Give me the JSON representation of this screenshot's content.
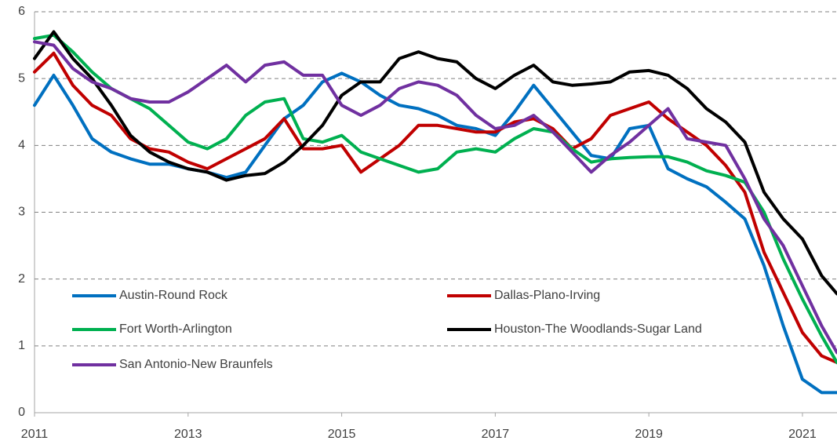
{
  "chart_data": {
    "type": "line",
    "x": [
      2011,
      2011.25,
      2011.5,
      2011.75,
      2012,
      2012.25,
      2012.5,
      2012.75,
      2013,
      2013.25,
      2013.5,
      2013.75,
      2014,
      2014.25,
      2014.5,
      2014.75,
      2015,
      2015.25,
      2015.5,
      2015.75,
      2016,
      2016.25,
      2016.5,
      2016.75,
      2017,
      2017.25,
      2017.5,
      2017.75,
      2018,
      2018.25,
      2018.5,
      2018.75,
      2019,
      2019.25,
      2019.5,
      2019.75,
      2020,
      2020.25,
      2020.5,
      2020.75,
      2021,
      2021.25,
      2021.45
    ],
    "series": [
      {
        "name": "Austin-Round Rock",
        "color": "#0070c0",
        "values": [
          4.6,
          5.05,
          4.6,
          4.1,
          3.9,
          3.8,
          3.72,
          3.72,
          3.65,
          3.6,
          3.52,
          3.6,
          4.0,
          4.4,
          4.6,
          4.95,
          5.08,
          4.95,
          4.75,
          4.6,
          4.55,
          4.45,
          4.3,
          4.25,
          4.15,
          4.5,
          4.9,
          4.55,
          4.2,
          3.85,
          3.8,
          4.25,
          4.3,
          3.65,
          3.5,
          3.38,
          3.15,
          2.9,
          2.2,
          1.3,
          0.5,
          0.3,
          0.3
        ]
      },
      {
        "name": "Dallas-Plano-Irving",
        "color": "#c00000",
        "values": [
          5.1,
          5.38,
          4.9,
          4.6,
          4.45,
          4.1,
          3.95,
          3.9,
          3.75,
          3.65,
          3.8,
          3.95,
          4.1,
          4.4,
          3.95,
          3.95,
          4.0,
          3.6,
          3.8,
          4.0,
          4.3,
          4.3,
          4.25,
          4.2,
          4.2,
          4.35,
          4.4,
          4.25,
          3.95,
          4.1,
          4.45,
          4.55,
          4.65,
          4.4,
          4.2,
          4.0,
          3.7,
          3.3,
          2.4,
          1.8,
          1.2,
          0.85,
          0.75
        ]
      },
      {
        "name": "Fort Worth-Arlington",
        "color": "#00b050",
        "values": [
          5.6,
          5.65,
          5.4,
          5.1,
          4.85,
          4.7,
          4.55,
          4.3,
          4.05,
          3.95,
          4.1,
          4.45,
          4.65,
          4.7,
          4.1,
          4.05,
          4.15,
          3.9,
          3.8,
          3.7,
          3.6,
          3.65,
          3.9,
          3.95,
          3.9,
          4.1,
          4.25,
          4.2,
          3.95,
          3.75,
          3.8,
          3.82,
          3.83,
          3.83,
          3.75,
          3.62,
          3.55,
          3.45,
          3.0,
          2.3,
          1.7,
          1.15,
          0.75
        ]
      },
      {
        "name": "Houston-The Woodlands-Sugar Land",
        "color": "#000000",
        "values": [
          5.3,
          5.7,
          5.3,
          5.0,
          4.6,
          4.15,
          3.9,
          3.75,
          3.65,
          3.6,
          3.48,
          3.55,
          3.58,
          3.75,
          4.0,
          4.3,
          4.75,
          4.95,
          4.95,
          5.3,
          5.4,
          5.3,
          5.25,
          5.0,
          4.85,
          5.05,
          5.2,
          4.95,
          4.9,
          4.92,
          4.95,
          5.1,
          5.12,
          5.05,
          4.85,
          4.55,
          4.35,
          4.05,
          3.3,
          2.9,
          2.6,
          2.05,
          1.78
        ]
      },
      {
        "name": "San Antonio-New Braunfels",
        "color": "#7030a0",
        "values": [
          5.55,
          5.5,
          5.15,
          4.95,
          4.85,
          4.7,
          4.65,
          4.65,
          4.8,
          5.0,
          5.2,
          4.95,
          5.2,
          5.25,
          5.05,
          5.05,
          4.6,
          4.45,
          4.6,
          4.85,
          4.95,
          4.9,
          4.75,
          4.45,
          4.25,
          4.3,
          4.45,
          4.2,
          3.9,
          3.6,
          3.85,
          4.05,
          4.3,
          4.55,
          4.1,
          4.05,
          4.0,
          3.5,
          2.9,
          2.5,
          1.9,
          1.3,
          0.9
        ]
      }
    ],
    "xlim": [
      2011,
      2021.45
    ],
    "xticks": [
      2011,
      2013,
      2015,
      2017,
      2019,
      2021
    ],
    "ylim": [
      0,
      6
    ],
    "yticks": [
      0,
      1,
      2,
      3,
      4,
      5,
      6
    ],
    "grid": true,
    "legend": true
  }
}
